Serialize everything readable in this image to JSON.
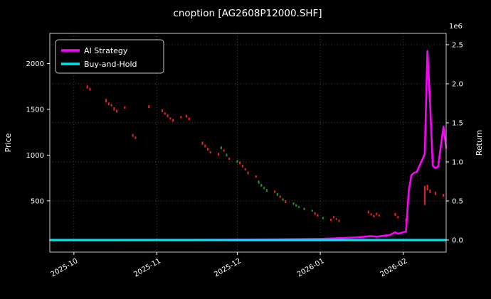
{
  "chart_data": {
    "type": "line",
    "title": "cnoption [AG2608P12000.SHF]",
    "ylabel_left": "Price",
    "ylabel_right": "Return",
    "right_axis_multiplier": "1e6",
    "x_range": [
      "2025-09-22",
      "2026-02-17"
    ],
    "price_range": [
      -60,
      2330
    ],
    "return_range": [
      -155000,
      2645000
    ],
    "x_ticks": [
      {
        "d": "2025-10-01",
        "label": "2025-10"
      },
      {
        "d": "2025-11-01",
        "label": "2025-11"
      },
      {
        "d": "2025-12-01",
        "label": "2025-12"
      },
      {
        "d": "2026-01-01",
        "label": "2026-01"
      },
      {
        "d": "2026-02-01",
        "label": "2026-02"
      }
    ],
    "price_ticks": [
      {
        "v": 500,
        "label": "500"
      },
      {
        "v": 1000,
        "label": "1000"
      },
      {
        "v": 1500,
        "label": "1500"
      },
      {
        "v": 2000,
        "label": "2000"
      }
    ],
    "return_ticks": [
      {
        "v": 0,
        "label": "0.0"
      },
      {
        "v": 500000,
        "label": "0.5"
      },
      {
        "v": 1000000,
        "label": "1.0"
      },
      {
        "v": 1500000,
        "label": "1.5"
      },
      {
        "v": 2000000,
        "label": "2.0"
      },
      {
        "v": 2500000,
        "label": "2.5"
      }
    ],
    "legend": [
      {
        "label": "AI Strategy",
        "color": "#ff00ff"
      },
      {
        "label": "Buy-and-Hold",
        "color": "#00e5ee"
      }
    ],
    "grid": true,
    "legend_position": "upper-left",
    "colors": {
      "background": "#000000",
      "text": "#ffffff",
      "grid": "#555555",
      "spine": "#c8c8c8",
      "ai_strategy": "#ff00ff",
      "buy_and_hold": "#00e5ee",
      "candle_down": "#dd2222",
      "candle_up": "#19901e"
    },
    "series": [
      {
        "name": "AI Strategy",
        "axis": "return",
        "points": [
          [
            "2025-09-22",
            0
          ],
          [
            "2025-10-15",
            1000
          ],
          [
            "2025-11-14",
            3000
          ],
          [
            "2025-12-15",
            8000
          ],
          [
            "2026-01-02",
            15000
          ],
          [
            "2026-01-09",
            25000
          ],
          [
            "2026-01-15",
            35000
          ],
          [
            "2026-01-20",
            50000
          ],
          [
            "2026-01-22",
            42000
          ],
          [
            "2026-01-27",
            65000
          ],
          [
            "2026-01-29",
            100000
          ],
          [
            "2026-01-30",
            80000
          ],
          [
            "2026-02-02",
            110000
          ],
          [
            "2026-02-03",
            620000
          ],
          [
            "2026-02-04",
            830000
          ],
          [
            "2026-02-05",
            860000
          ],
          [
            "2026-02-06",
            870000
          ],
          [
            "2026-02-09",
            1100000
          ],
          [
            "2026-02-10",
            2420000
          ],
          [
            "2026-02-11",
            1750000
          ],
          [
            "2026-02-12",
            950000
          ],
          [
            "2026-02-13",
            920000
          ],
          [
            "2026-02-14",
            940000
          ],
          [
            "2026-02-16",
            1450000
          ],
          [
            "2026-02-17",
            1180000
          ]
        ]
      },
      {
        "name": "Buy-and-Hold",
        "axis": "return",
        "points": [
          [
            "2025-09-22",
            0
          ],
          [
            "2026-02-17",
            0
          ]
        ]
      }
    ],
    "price_marks": [
      [
        "2025-10-06",
        1745,
        35,
        "d"
      ],
      [
        "2025-10-07",
        1720,
        30,
        "d"
      ],
      [
        "2025-10-13",
        1595,
        40,
        "d"
      ],
      [
        "2025-10-14",
        1560,
        30,
        "d"
      ],
      [
        "2025-10-15",
        1545,
        25,
        "d"
      ],
      [
        "2025-10-16",
        1505,
        35,
        "d"
      ],
      [
        "2025-10-17",
        1480,
        30,
        "d"
      ],
      [
        "2025-10-20",
        1520,
        25,
        "d"
      ],
      [
        "2025-10-23",
        1215,
        30,
        "d"
      ],
      [
        "2025-10-24",
        1190,
        25,
        "d"
      ],
      [
        "2025-10-29",
        1530,
        30,
        "d"
      ],
      [
        "2025-11-03",
        1485,
        30,
        "d"
      ],
      [
        "2025-11-04",
        1455,
        25,
        "d"
      ],
      [
        "2025-11-05",
        1430,
        30,
        "d"
      ],
      [
        "2025-11-06",
        1400,
        25,
        "d"
      ],
      [
        "2025-11-07",
        1380,
        30,
        "d"
      ],
      [
        "2025-11-10",
        1415,
        25,
        "d"
      ],
      [
        "2025-11-12",
        1425,
        30,
        "d"
      ],
      [
        "2025-11-13",
        1395,
        25,
        "d"
      ],
      [
        "2025-11-18",
        1130,
        35,
        "d"
      ],
      [
        "2025-11-19",
        1100,
        30,
        "d"
      ],
      [
        "2025-11-20",
        1065,
        30,
        "d"
      ],
      [
        "2025-11-21",
        1030,
        25,
        "d"
      ],
      [
        "2025-11-24",
        1010,
        30,
        "d"
      ],
      [
        "2025-11-25",
        1080,
        30,
        "u"
      ],
      [
        "2025-11-26",
        1050,
        25,
        "d"
      ],
      [
        "2025-11-27",
        1000,
        30,
        "u"
      ],
      [
        "2025-11-28",
        960,
        25,
        "d"
      ],
      [
        "2025-12-01",
        930,
        30,
        "u"
      ],
      [
        "2025-12-02",
        915,
        30,
        "d"
      ],
      [
        "2025-12-03",
        880,
        30,
        "d"
      ],
      [
        "2025-12-04",
        845,
        25,
        "d"
      ],
      [
        "2025-12-05",
        805,
        30,
        "d"
      ],
      [
        "2025-12-08",
        765,
        25,
        "d"
      ],
      [
        "2025-12-09",
        705,
        35,
        "u"
      ],
      [
        "2025-12-10",
        670,
        30,
        "u"
      ],
      [
        "2025-12-11",
        640,
        25,
        "u"
      ],
      [
        "2025-12-12",
        615,
        30,
        "u"
      ],
      [
        "2025-12-15",
        600,
        25,
        "d"
      ],
      [
        "2025-12-16",
        570,
        30,
        "u"
      ],
      [
        "2025-12-17",
        545,
        25,
        "d"
      ],
      [
        "2025-12-18",
        515,
        25,
        "u"
      ],
      [
        "2025-12-19",
        490,
        30,
        "d"
      ],
      [
        "2025-12-22",
        470,
        25,
        "u"
      ],
      [
        "2025-12-23",
        450,
        25,
        "u"
      ],
      [
        "2025-12-24",
        432,
        20,
        "u"
      ],
      [
        "2025-12-26",
        412,
        25,
        "u"
      ],
      [
        "2025-12-29",
        392,
        20,
        "u"
      ],
      [
        "2025-12-30",
        362,
        30,
        "d"
      ],
      [
        "2025-12-31",
        342,
        25,
        "d"
      ],
      [
        "2026-01-02",
        312,
        25,
        "u"
      ],
      [
        "2026-01-05",
        292,
        25,
        "d"
      ],
      [
        "2026-01-06",
        322,
        25,
        "d"
      ],
      [
        "2026-01-07",
        302,
        20,
        "d"
      ],
      [
        "2026-01-08",
        282,
        25,
        "d"
      ],
      [
        "2026-01-19",
        378,
        30,
        "d"
      ],
      [
        "2026-01-20",
        352,
        25,
        "d"
      ],
      [
        "2026-01-21",
        332,
        25,
        "d"
      ],
      [
        "2026-01-22",
        358,
        25,
        "d"
      ],
      [
        "2026-01-23",
        340,
        20,
        "d"
      ],
      [
        "2026-01-29",
        352,
        30,
        "d"
      ],
      [
        "2026-01-30",
        322,
        25,
        "d"
      ],
      [
        "2026-02-02",
        292,
        25,
        "d"
      ],
      [
        "2026-02-09",
        560,
        210,
        "d"
      ],
      [
        "2026-02-10",
        645,
        60,
        "d"
      ],
      [
        "2026-02-11",
        605,
        40,
        "d"
      ],
      [
        "2026-02-13",
        582,
        35,
        "d"
      ],
      [
        "2026-02-16",
        560,
        30,
        "d"
      ]
    ]
  }
}
